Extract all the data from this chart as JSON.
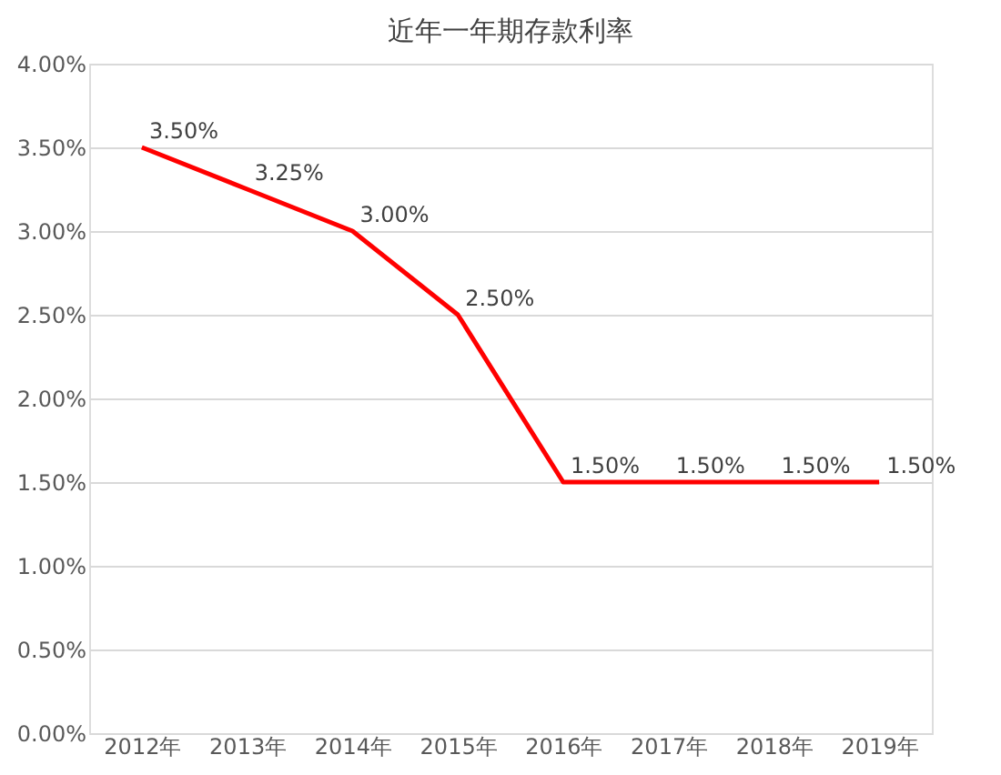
{
  "chart_data": {
    "type": "line",
    "title": "近年一年期存款利率",
    "categories": [
      "2012年",
      "2013年",
      "2014年",
      "2015年",
      "2016年",
      "2017年",
      "2018年",
      "2019年"
    ],
    "series": [
      {
        "color": "#ff0000",
        "values": [
          3.5,
          3.25,
          3.0,
          2.5,
          1.5,
          1.5,
          1.5,
          1.5
        ],
        "value_labels": [
          "3.50%",
          "3.25%",
          "3.00%",
          "2.50%",
          "1.50%",
          "1.50%",
          "1.50%",
          "1.50%"
        ]
      }
    ],
    "ylim": [
      0,
      4
    ],
    "yticks": [
      {
        "value": 0,
        "label": "0.00%"
      },
      {
        "value": 0.5,
        "label": "0.50%"
      },
      {
        "value": 1,
        "label": "1.00%"
      },
      {
        "value": 1.5,
        "label": "1.50%"
      },
      {
        "value": 2,
        "label": "2.00%"
      },
      {
        "value": 2.5,
        "label": "2.50%"
      },
      {
        "value": 3,
        "label": "3.00%"
      },
      {
        "value": 3.5,
        "label": "3.50%"
      },
      {
        "value": 4,
        "label": "4.00%"
      }
    ],
    "grid": "y",
    "marker": "none",
    "line_style": "solid"
  }
}
